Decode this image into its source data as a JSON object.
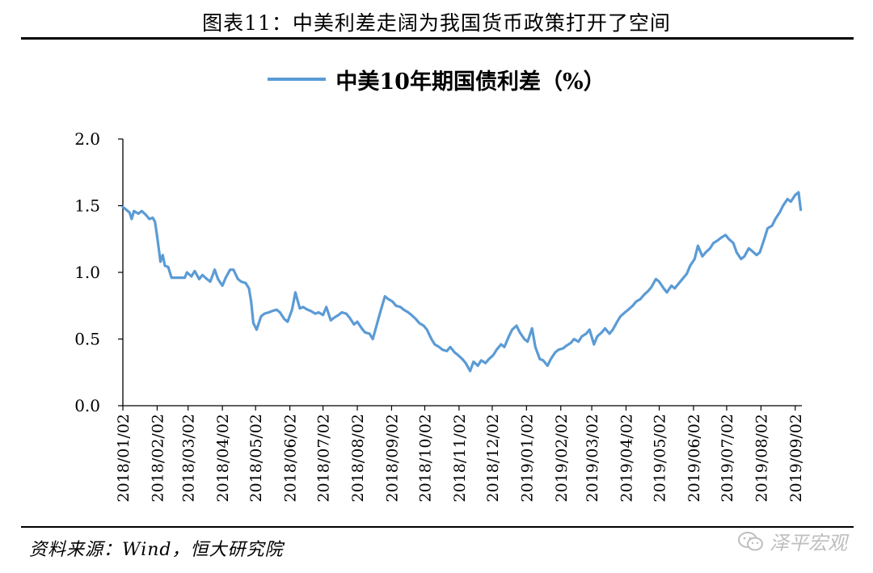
{
  "figure_title": "图表11：中美利差走阔为我国货币政策打开了空间",
  "source_note": "资料来源：Wind，恒大研究院",
  "watermark": {
    "icon": "wechat-icon",
    "text": "泽平宏观"
  },
  "colors": {
    "series": "#5b9bd5",
    "rule": "#000000"
  },
  "chart_data": {
    "type": "line",
    "title": "",
    "xlabel": "",
    "ylabel": "",
    "ylim": [
      0,
      2
    ],
    "yticks": [
      "0.0",
      "0.5",
      "1.0",
      "1.5",
      "2.0"
    ],
    "grid": false,
    "legend_position": "top-center",
    "x_tick_labels": [
      "2018/01/02",
      "2018/02/02",
      "2018/03/02",
      "2018/04/02",
      "2018/05/02",
      "2018/06/02",
      "2018/07/02",
      "2018/08/02",
      "2018/09/02",
      "2018/10/02",
      "2018/11/02",
      "2018/12/02",
      "2019/01/02",
      "2019/02/02",
      "2019/03/02",
      "2019/04/02",
      "2019/05/02",
      "2019/06/02",
      "2019/07/02",
      "2019/08/02",
      "2019/09/02"
    ],
    "series": [
      {
        "name": "中美10年期国债利差（%）",
        "points": [
          [
            "2018-01-02",
            1.49
          ],
          [
            "2018-01-05",
            1.47
          ],
          [
            "2018-01-08",
            1.45
          ],
          [
            "2018-01-10",
            1.4
          ],
          [
            "2018-01-12",
            1.46
          ],
          [
            "2018-01-16",
            1.44
          ],
          [
            "2018-01-19",
            1.46
          ],
          [
            "2018-01-23",
            1.43
          ],
          [
            "2018-01-26",
            1.4
          ],
          [
            "2018-01-29",
            1.41
          ],
          [
            "2018-01-31",
            1.38
          ],
          [
            "2018-02-02",
            1.27
          ],
          [
            "2018-02-05",
            1.08
          ],
          [
            "2018-02-07",
            1.13
          ],
          [
            "2018-02-09",
            1.05
          ],
          [
            "2018-02-12",
            1.04
          ],
          [
            "2018-02-15",
            0.96
          ],
          [
            "2018-02-22",
            0.96
          ],
          [
            "2018-02-27",
            0.96
          ],
          [
            "2018-03-01",
            1.0
          ],
          [
            "2018-03-05",
            0.97
          ],
          [
            "2018-03-08",
            1.01
          ],
          [
            "2018-03-12",
            0.95
          ],
          [
            "2018-03-15",
            0.98
          ],
          [
            "2018-03-19",
            0.95
          ],
          [
            "2018-03-22",
            0.93
          ],
          [
            "2018-03-26",
            1.02
          ],
          [
            "2018-03-29",
            0.95
          ],
          [
            "2018-04-02",
            0.9
          ],
          [
            "2018-04-05",
            0.96
          ],
          [
            "2018-04-09",
            1.02
          ],
          [
            "2018-04-12",
            1.02
          ],
          [
            "2018-04-16",
            0.95
          ],
          [
            "2018-04-19",
            0.93
          ],
          [
            "2018-04-23",
            0.92
          ],
          [
            "2018-04-26",
            0.88
          ],
          [
            "2018-04-28",
            0.78
          ],
          [
            "2018-04-30",
            0.62
          ],
          [
            "2018-05-03",
            0.57
          ],
          [
            "2018-05-07",
            0.67
          ],
          [
            "2018-05-10",
            0.69
          ],
          [
            "2018-05-14",
            0.7
          ],
          [
            "2018-05-17",
            0.71
          ],
          [
            "2018-05-21",
            0.72
          ],
          [
            "2018-05-24",
            0.7
          ],
          [
            "2018-05-28",
            0.65
          ],
          [
            "2018-05-31",
            0.63
          ],
          [
            "2018-06-04",
            0.72
          ],
          [
            "2018-06-07",
            0.85
          ],
          [
            "2018-06-11",
            0.73
          ],
          [
            "2018-06-14",
            0.74
          ],
          [
            "2018-06-18",
            0.72
          ],
          [
            "2018-06-21",
            0.71
          ],
          [
            "2018-06-25",
            0.69
          ],
          [
            "2018-06-28",
            0.7
          ],
          [
            "2018-07-02",
            0.68
          ],
          [
            "2018-07-05",
            0.74
          ],
          [
            "2018-07-09",
            0.64
          ],
          [
            "2018-07-12",
            0.66
          ],
          [
            "2018-07-16",
            0.68
          ],
          [
            "2018-07-19",
            0.7
          ],
          [
            "2018-07-23",
            0.69
          ],
          [
            "2018-07-26",
            0.66
          ],
          [
            "2018-07-30",
            0.61
          ],
          [
            "2018-08-02",
            0.63
          ],
          [
            "2018-08-06",
            0.58
          ],
          [
            "2018-08-09",
            0.55
          ],
          [
            "2018-08-13",
            0.54
          ],
          [
            "2018-08-16",
            0.5
          ],
          [
            "2018-08-20",
            0.62
          ],
          [
            "2018-08-23",
            0.71
          ],
          [
            "2018-08-27",
            0.82
          ],
          [
            "2018-08-30",
            0.8
          ],
          [
            "2018-09-03",
            0.78
          ],
          [
            "2018-09-06",
            0.75
          ],
          [
            "2018-09-10",
            0.74
          ],
          [
            "2018-09-13",
            0.72
          ],
          [
            "2018-09-17",
            0.7
          ],
          [
            "2018-09-20",
            0.68
          ],
          [
            "2018-09-24",
            0.65
          ],
          [
            "2018-09-27",
            0.62
          ],
          [
            "2018-10-01",
            0.6
          ],
          [
            "2018-10-04",
            0.57
          ],
          [
            "2018-10-08",
            0.5
          ],
          [
            "2018-10-11",
            0.46
          ],
          [
            "2018-10-15",
            0.44
          ],
          [
            "2018-10-18",
            0.42
          ],
          [
            "2018-10-22",
            0.41
          ],
          [
            "2018-10-25",
            0.44
          ],
          [
            "2018-10-29",
            0.4
          ],
          [
            "2018-11-01",
            0.38
          ],
          [
            "2018-11-05",
            0.35
          ],
          [
            "2018-11-08",
            0.32
          ],
          [
            "2018-11-12",
            0.26
          ],
          [
            "2018-11-15",
            0.33
          ],
          [
            "2018-11-19",
            0.3
          ],
          [
            "2018-11-22",
            0.34
          ],
          [
            "2018-11-26",
            0.32
          ],
          [
            "2018-11-29",
            0.35
          ],
          [
            "2018-12-03",
            0.38
          ],
          [
            "2018-12-06",
            0.42
          ],
          [
            "2018-12-10",
            0.46
          ],
          [
            "2018-12-13",
            0.44
          ],
          [
            "2018-12-17",
            0.52
          ],
          [
            "2018-12-20",
            0.57
          ],
          [
            "2018-12-24",
            0.6
          ],
          [
            "2018-12-27",
            0.55
          ],
          [
            "2018-12-31",
            0.5
          ],
          [
            "2019-01-03",
            0.48
          ],
          [
            "2019-01-07",
            0.58
          ],
          [
            "2019-01-10",
            0.44
          ],
          [
            "2019-01-14",
            0.35
          ],
          [
            "2019-01-17",
            0.34
          ],
          [
            "2019-01-21",
            0.3
          ],
          [
            "2019-01-24",
            0.35
          ],
          [
            "2019-01-28",
            0.4
          ],
          [
            "2019-01-31",
            0.42
          ],
          [
            "2019-02-04",
            0.43
          ],
          [
            "2019-02-07",
            0.45
          ],
          [
            "2019-02-11",
            0.47
          ],
          [
            "2019-02-14",
            0.5
          ],
          [
            "2019-02-18",
            0.48
          ],
          [
            "2019-02-21",
            0.52
          ],
          [
            "2019-02-25",
            0.54
          ],
          [
            "2019-02-28",
            0.57
          ],
          [
            "2019-03-04",
            0.46
          ],
          [
            "2019-03-07",
            0.52
          ],
          [
            "2019-03-11",
            0.55
          ],
          [
            "2019-03-14",
            0.58
          ],
          [
            "2019-03-18",
            0.54
          ],
          [
            "2019-03-21",
            0.57
          ],
          [
            "2019-03-25",
            0.63
          ],
          [
            "2019-03-28",
            0.67
          ],
          [
            "2019-04-01",
            0.7
          ],
          [
            "2019-04-04",
            0.72
          ],
          [
            "2019-04-08",
            0.75
          ],
          [
            "2019-04-11",
            0.78
          ],
          [
            "2019-04-15",
            0.8
          ],
          [
            "2019-04-18",
            0.83
          ],
          [
            "2019-04-22",
            0.86
          ],
          [
            "2019-04-25",
            0.89
          ],
          [
            "2019-04-29",
            0.95
          ],
          [
            "2019-05-02",
            0.93
          ],
          [
            "2019-05-06",
            0.88
          ],
          [
            "2019-05-09",
            0.85
          ],
          [
            "2019-05-13",
            0.9
          ],
          [
            "2019-05-16",
            0.88
          ],
          [
            "2019-05-20",
            0.92
          ],
          [
            "2019-05-23",
            0.95
          ],
          [
            "2019-05-27",
            0.99
          ],
          [
            "2019-05-30",
            1.05
          ],
          [
            "2019-06-03",
            1.1
          ],
          [
            "2019-06-06",
            1.2
          ],
          [
            "2019-06-10",
            1.12
          ],
          [
            "2019-06-13",
            1.15
          ],
          [
            "2019-06-17",
            1.18
          ],
          [
            "2019-06-20",
            1.22
          ],
          [
            "2019-06-24",
            1.24
          ],
          [
            "2019-06-27",
            1.26
          ],
          [
            "2019-07-01",
            1.28
          ],
          [
            "2019-07-04",
            1.25
          ],
          [
            "2019-07-08",
            1.22
          ],
          [
            "2019-07-11",
            1.15
          ],
          [
            "2019-07-15",
            1.1
          ],
          [
            "2019-07-18",
            1.12
          ],
          [
            "2019-07-22",
            1.18
          ],
          [
            "2019-07-25",
            1.16
          ],
          [
            "2019-07-29",
            1.13
          ],
          [
            "2019-08-01",
            1.15
          ],
          [
            "2019-08-05",
            1.25
          ],
          [
            "2019-08-08",
            1.33
          ],
          [
            "2019-08-12",
            1.35
          ],
          [
            "2019-08-15",
            1.4
          ],
          [
            "2019-08-19",
            1.45
          ],
          [
            "2019-08-22",
            1.5
          ],
          [
            "2019-08-26",
            1.55
          ],
          [
            "2019-08-29",
            1.53
          ],
          [
            "2019-09-02",
            1.58
          ],
          [
            "2019-09-05",
            1.6
          ],
          [
            "2019-09-07",
            1.47
          ]
        ]
      }
    ]
  }
}
